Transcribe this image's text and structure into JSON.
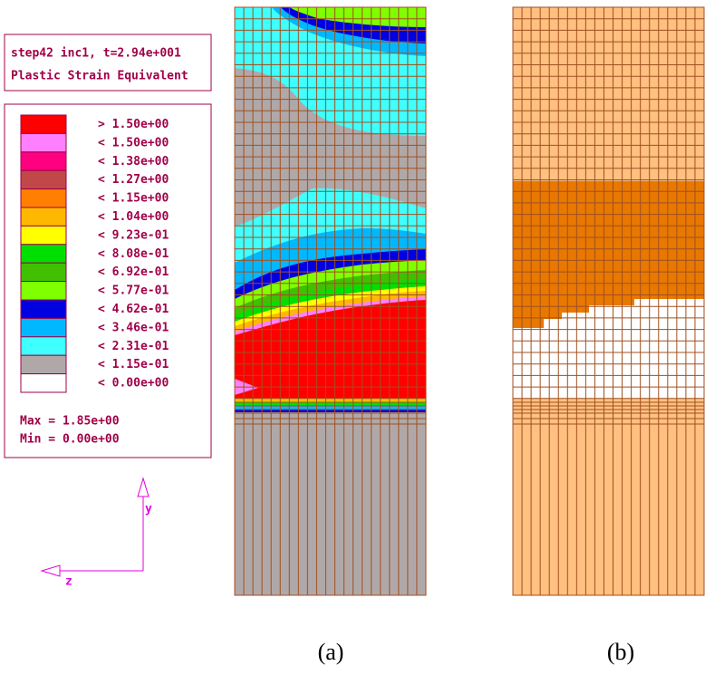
{
  "info": {
    "line1": "step42 inc1, t=2.94e+001",
    "line2": "Plastic Strain Equivalent"
  },
  "legend": [
    {
      "color": "#ff0000",
      "label": "> 1.50e+00"
    },
    {
      "color": "#ff80ff",
      "label": "< 1.50e+00"
    },
    {
      "color": "#ff0080",
      "label": "< 1.38e+00"
    },
    {
      "color": "#c04848",
      "label": "< 1.27e+00"
    },
    {
      "color": "#ff8000",
      "label": "< 1.15e+00"
    },
    {
      "color": "#ffb800",
      "label": "< 1.04e+00"
    },
    {
      "color": "#ffff00",
      "label": "< 9.23e-01"
    },
    {
      "color": "#00e000",
      "label": "< 8.08e-01"
    },
    {
      "color": "#40c000",
      "label": "< 6.92e-01"
    },
    {
      "color": "#80ff00",
      "label": "< 5.77e-01"
    },
    {
      "color": "#0000e0",
      "label": "< 4.62e-01"
    },
    {
      "color": "#00b8ff",
      "label": "< 3.46e-01"
    },
    {
      "color": "#40ffff",
      "label": "< 2.31e-01"
    },
    {
      "color": "#b0a8a8",
      "label": "< 1.15e-01"
    },
    {
      "color": "#ffffff",
      "label": "< 0.00e+00"
    }
  ],
  "max": "Max = 1.85e+00",
  "min": "Min = 0.00e+00",
  "axes": {
    "y": "y",
    "z": "z"
  },
  "captions": {
    "a": "(a)",
    "b": "(b)"
  }
}
